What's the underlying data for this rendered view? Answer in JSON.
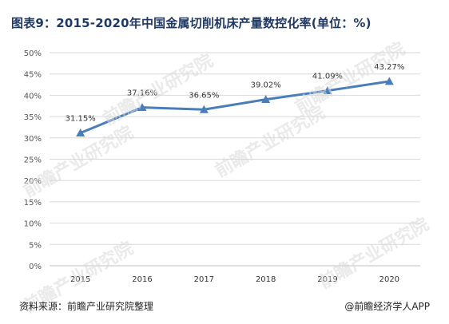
{
  "title": "图表9：2015-2020年中国金属切削机床产量数控化率(单位：%)",
  "watermark": "前瞻产业研究院",
  "footer": {
    "source": "资料来源：前瞻产业研究院整理",
    "credit": "@前瞻经济学人APP"
  },
  "colors": {
    "series": "#4a7ebb",
    "title": "#1f3864",
    "grid": "#d9d9d9",
    "tick": "#555555"
  },
  "chart_data": {
    "type": "line",
    "categories": [
      "2015",
      "2016",
      "2017",
      "2018",
      "2019",
      "2020"
    ],
    "series": [
      {
        "name": "",
        "values": [
          31.15,
          37.16,
          36.65,
          39.02,
          41.09,
          43.27
        ],
        "labels": [
          "31.15%",
          "37.16%",
          "36.65%",
          "39.02%",
          "41.09%",
          "43.27%"
        ],
        "marker": "triangle"
      }
    ],
    "ylim": [
      0,
      50
    ],
    "yticks": [
      0,
      5,
      10,
      15,
      20,
      25,
      30,
      35,
      40,
      45,
      50
    ],
    "ytick_labels": [
      "0%",
      "5%",
      "10%",
      "15%",
      "20%",
      "25%",
      "30%",
      "35%",
      "40%",
      "45%",
      "50%"
    ],
    "xlabel": "",
    "ylabel": "",
    "grid": true,
    "legend": "none"
  }
}
